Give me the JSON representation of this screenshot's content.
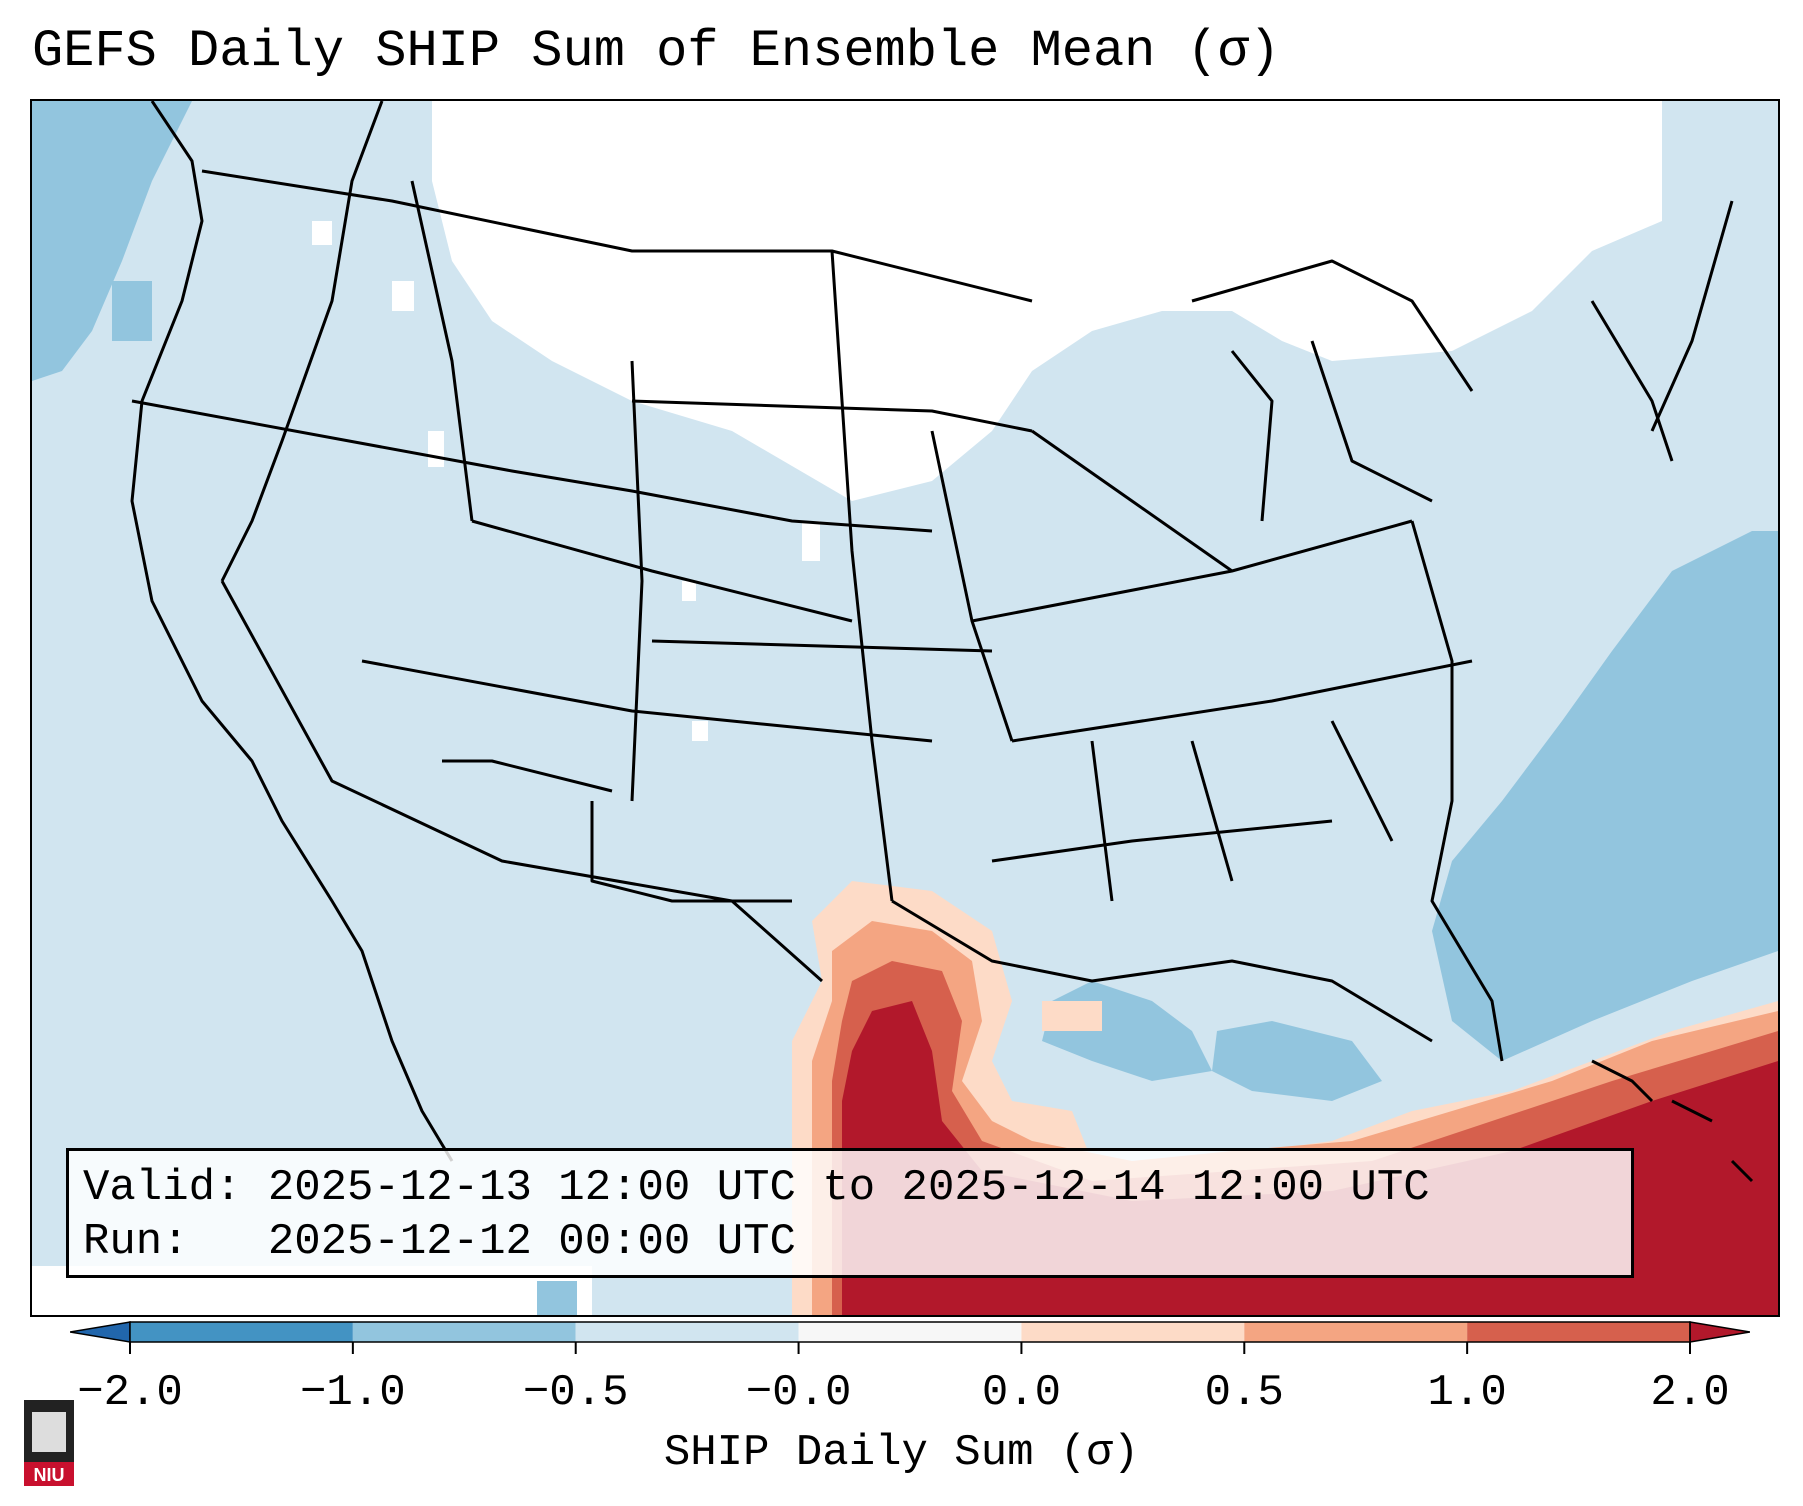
{
  "title": "GEFS Daily SHIP Sum of Ensemble Mean (σ)",
  "info": {
    "valid_label": "Valid:",
    "valid_value": "2025-12-13 12:00 UTC to 2025-12-14 12:00 UTC",
    "run_label": "Run:",
    "run_value": "2025-12-12 00:00 UTC"
  },
  "colorbar": {
    "label": "SHIP Daily Sum (σ)",
    "ticks": [
      "−2.0",
      "−1.0",
      "−0.5",
      "−0.0",
      "0.0",
      "0.5",
      "1.0",
      "2.0"
    ],
    "colors": [
      "#4393c3",
      "#92c5de",
      "#d1e5f0",
      "#f7f7f7",
      "#fddbc7",
      "#f4a582",
      "#d6604d",
      "#b2182b"
    ],
    "extend_low_color": "#2166ac",
    "extend_high_color": "#b2182b"
  },
  "logo": {
    "text": "NIU",
    "color": "#c8102e"
  }
}
